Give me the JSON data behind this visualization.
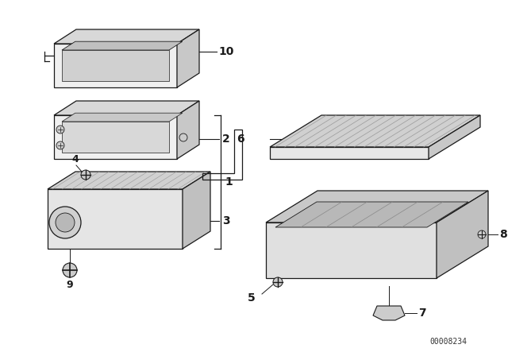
{
  "background_color": "#ffffff",
  "line_color": "#1a1a1a",
  "part_number_text": "00008234",
  "gray_fill": "#e8e8e8",
  "gray_dark": "#c8c8c8",
  "gray_mid": "#d8d8d8",
  "gray_light": "#f0f0f0",
  "gray_inner": "#b0b0b0"
}
